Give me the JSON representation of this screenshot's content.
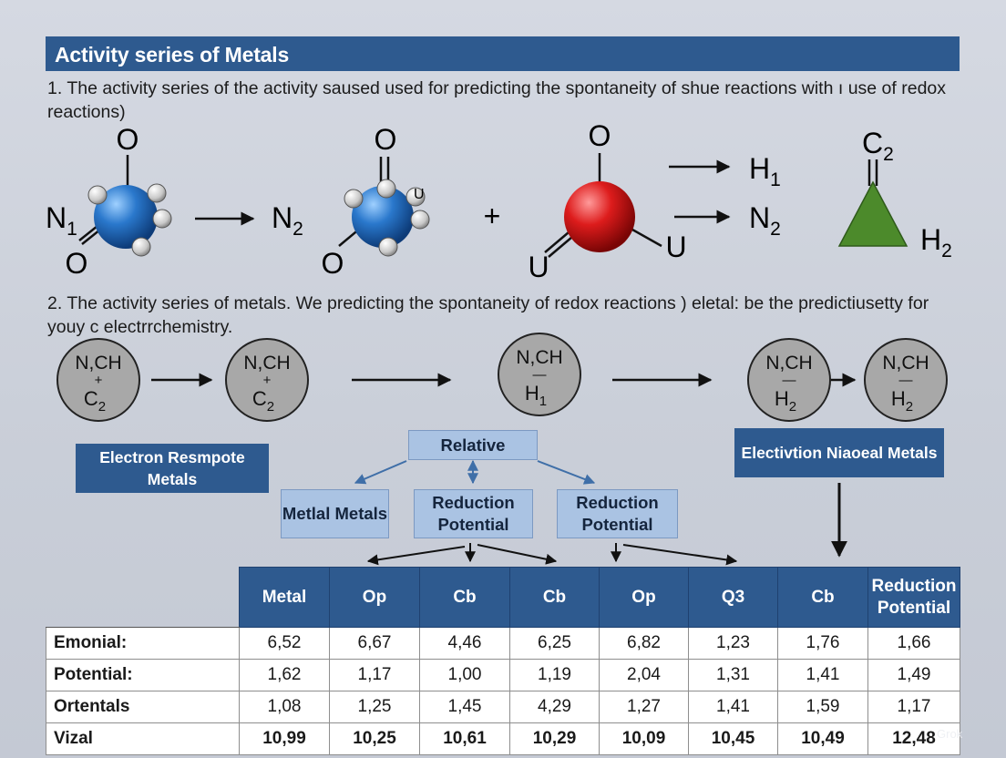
{
  "title": "Activity series of Metals",
  "intro_1": "1. The activity series of the activity saused used for predicting the spontaneity of shue reactions with ı use of redox reactions)",
  "intro_2": "2. The activity series of metals. We predicting the spontaneity of redox reactions ) eletal: be the predictiusetty for youy c electrrchemistry.",
  "reaction": {
    "mol1": {
      "left": "N",
      "left_sub": "1",
      "top": "O",
      "bottom": "O",
      "color": "#2a78cc"
    },
    "product1": {
      "text": "N",
      "sub": "2"
    },
    "mol2": {
      "top": "O",
      "bottom": "O",
      "tag": "U",
      "color": "#2a78cc"
    },
    "plus": "+",
    "mol3": {
      "top": "O",
      "bottom_left": "U",
      "bottom_right": "U",
      "color": "#dd1c1c"
    },
    "products": [
      {
        "text": "H",
        "sub": "1"
      },
      {
        "text": "N",
        "sub": "2"
      }
    ],
    "triangle": {
      "top": "C",
      "top_sub": "2",
      "right": "H",
      "right_sub": "2",
      "color": "#4c8a2b"
    }
  },
  "flow_circles": [
    {
      "line1": "N,CH",
      "mid": "+",
      "line2": "C",
      "sub": "2"
    },
    {
      "line1": "N,CH",
      "mid": "+",
      "line2": "C",
      "sub": "2"
    },
    {
      "line1": "N,CH",
      "mid": "—",
      "line2": "H",
      "sub": "1"
    },
    {
      "line1": "N,CH",
      "mid": "—",
      "line2": "H",
      "sub": "2"
    },
    {
      "line1": "N,CH",
      "mid": "—",
      "line2": "H",
      "sub": "2"
    }
  ],
  "boxes": {
    "left": "Electron Resmpote Metals",
    "right": "Electivtion Niaoeal Metals",
    "relative": "Relative",
    "metal": "Metlal Metals",
    "reduction_1": "Reduction Potential",
    "reduction_2": "Reduction Potential"
  },
  "table": {
    "headers": [
      "Metal",
      "Op",
      "Cb",
      "Cb",
      "Op",
      "Q3",
      "Cb",
      "Reduction Potential"
    ],
    "rows": [
      {
        "label": "Emonial:",
        "values": [
          "6,52",
          "6,67",
          "4,46",
          "6,25",
          "6,82",
          "1,23",
          "1,76",
          "1,66"
        ]
      },
      {
        "label": "Potential:",
        "values": [
          "1,62",
          "1,17",
          "1,00",
          "1,19",
          "2,04",
          "1,31",
          "1,41",
          "1,49"
        ]
      },
      {
        "label": "Ortentals",
        "values": [
          "1,08",
          "1,25",
          "1,45",
          "4,29",
          "1,27",
          "1,41",
          "1,59",
          "1,17"
        ]
      },
      {
        "label": "Vizal",
        "values": [
          "10,99",
          "10,25",
          "10,61",
          "10,29",
          "10,09",
          "10,45",
          "10,49",
          "12,48"
        ]
      }
    ]
  },
  "colors": {
    "header_blue": "#2e5a8f",
    "light_box": "#aac3e3",
    "circle_gray": "#a8a8a8"
  },
  "watermark": "Grok"
}
